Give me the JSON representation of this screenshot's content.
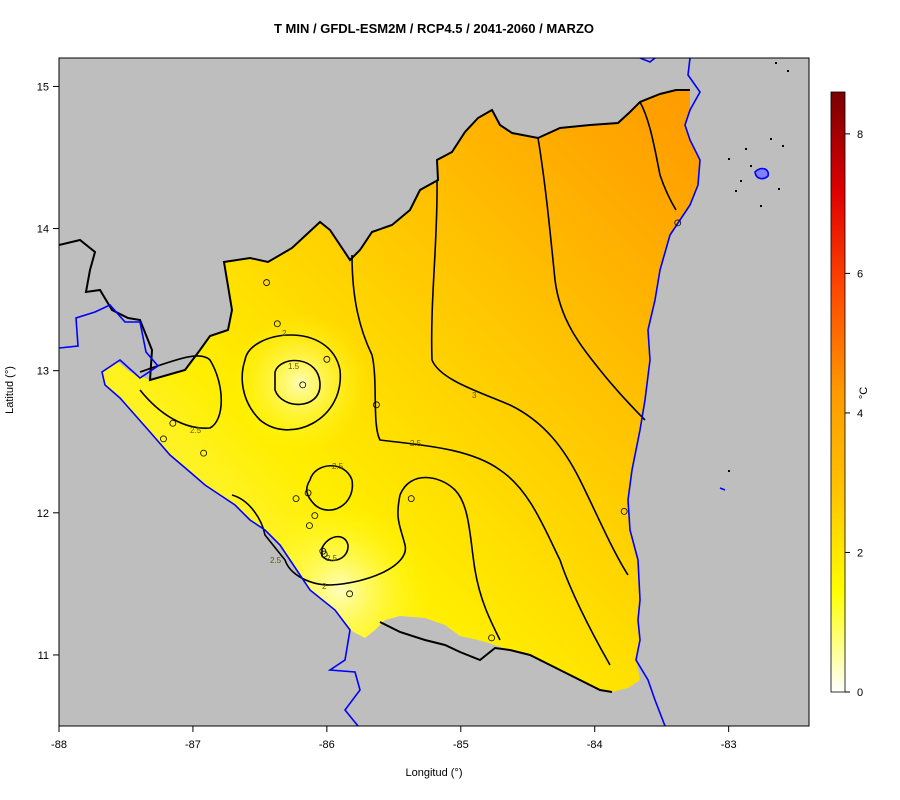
{
  "title": "T MIN / GFDL-ESM2M / RCP4.5 / 2041-2060 / MARZO",
  "xlabel": "Longitud (°)",
  "ylabel": "Latitud (°)",
  "colorbar": {
    "unit": "°C",
    "range": [
      0,
      8.6
    ],
    "ticks": [
      "0",
      "2",
      "4",
      "6",
      "8"
    ],
    "colors": [
      "#ffffff",
      "#ffff00",
      "#ffc400",
      "#ff9a00",
      "#ff4a00",
      "#e00000",
      "#7a0000"
    ]
  },
  "axes": {
    "x_range": [
      -88,
      -82.4
    ],
    "y_range": [
      10.5,
      15.2
    ],
    "x_ticks": [
      "-88",
      "-87",
      "-86",
      "-85",
      "-84",
      "-83"
    ],
    "y_ticks": [
      "11",
      "12",
      "13",
      "14",
      "15"
    ]
  },
  "colors": {
    "background_land_sea": "#bebebe",
    "coastline": "#0000ff",
    "border": "#000000",
    "contour": "#000000"
  },
  "contour_labels": [
    "1.5",
    "2",
    "2",
    "2.5",
    "2.5",
    "2.5",
    "2.5",
    "2.5",
    "3"
  ],
  "chart_data": {
    "type": "heatmap",
    "title": "T MIN / GFDL-ESM2M / RCP4.5 / 2041-2060 / MARZO",
    "xlabel": "Longitud (°)",
    "ylabel": "Latitud (°)",
    "xlim": [
      -88,
      -82.4
    ],
    "ylim": [
      10.5,
      15.2
    ],
    "colorbar_range": [
      0,
      8.6
    ],
    "contour_levels": [
      1.5,
      2,
      2.5,
      3
    ],
    "stations": [
      [
        -86.45,
        13.62
      ],
      [
        -86.37,
        13.33
      ],
      [
        -86.0,
        13.08
      ],
      [
        -86.18,
        12.9
      ],
      [
        -85.63,
        12.76
      ],
      [
        -87.15,
        12.63
      ],
      [
        -87.22,
        12.52
      ],
      [
        -86.92,
        12.42
      ],
      [
        -85.37,
        12.1
      ],
      [
        -86.23,
        12.1
      ],
      [
        -86.14,
        12.14
      ],
      [
        -86.09,
        11.98
      ],
      [
        -86.13,
        11.91
      ],
      [
        -86.03,
        11.73
      ],
      [
        -86.02,
        11.71
      ],
      [
        -85.83,
        11.43
      ],
      [
        -84.77,
        11.12
      ],
      [
        -83.78,
        12.01
      ],
      [
        -83.38,
        14.04
      ]
    ]
  }
}
